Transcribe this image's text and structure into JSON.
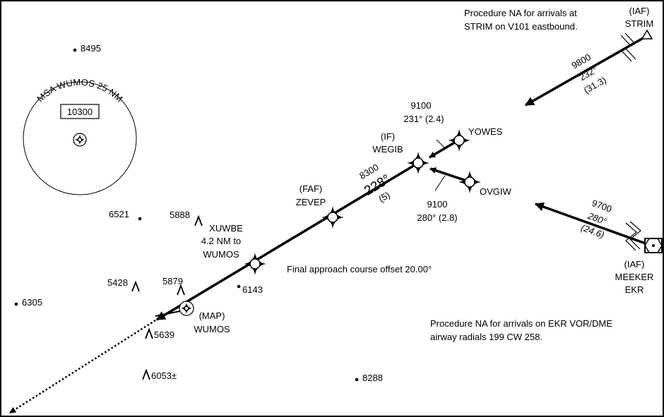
{
  "msa": {
    "fix": "WUMOS",
    "arc_text": "MSA WUMOS 25 NM",
    "altitude": "10300"
  },
  "notes": {
    "strim_line1": "Procedure NA for arrivals at",
    "strim_line2": "STRIM on V101 eastbound.",
    "ekr_line1": "Procedure NA for arrivals on EKR VOR/DME",
    "ekr_line2": "airway radials 199 CW 258.",
    "offset": "Final approach course offset 20.00°"
  },
  "fixes": {
    "strim": {
      "role": "(IAF)",
      "name": "STRIM"
    },
    "meeker": {
      "role": "(IAF)",
      "name": "MEEKER",
      "ident": "EKR"
    },
    "yowes": {
      "name": "YOWES"
    },
    "ovgiw": {
      "name": "OVGIW"
    },
    "wegib": {
      "role": "(IF)",
      "name": "WEGIB"
    },
    "zevep": {
      "role": "(FAF)",
      "name": "ZEVEP"
    },
    "wumos": {
      "role": "(MAP)",
      "name": "WUMOS"
    },
    "xuwbe": {
      "name": "XUWBE",
      "line2": "4.2 NM to",
      "line3": "WUMOS"
    }
  },
  "legs": {
    "strim": {
      "alt": "9800",
      "course": "232°",
      "dist": "(31.3)"
    },
    "ekr": {
      "alt": "9700",
      "course": "280°",
      "dist": "(24.6)"
    },
    "yowes": {
      "alt": "9100",
      "crsdist": "231° (2.4)"
    },
    "ovgiw": {
      "alt": "9100",
      "crsdist": "280° (2.8)"
    },
    "final": {
      "alt": "8300",
      "course": "228°",
      "dist": "(5)"
    }
  },
  "elevations": {
    "e8495": "8495",
    "e6521": "6521",
    "e5888": "5888",
    "e5428": "5428",
    "e5879": "5879",
    "e6143": "6143",
    "e6305": "6305",
    "e5639": "5639",
    "e6053": "6053±",
    "e8288": "8288"
  }
}
